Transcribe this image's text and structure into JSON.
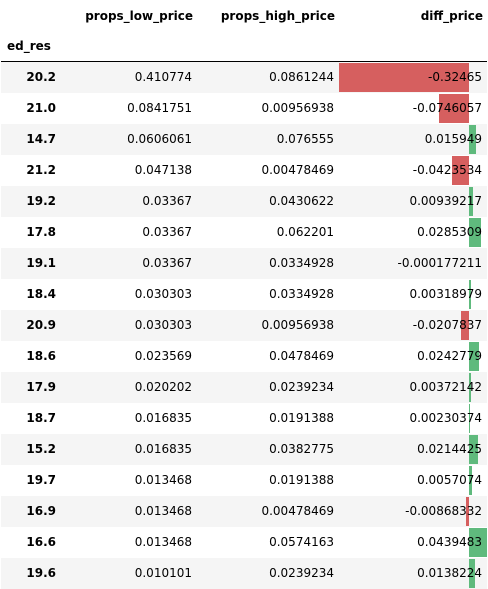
{
  "columns": [
    "props_low_price",
    "props_high_price",
    "diff_price"
  ],
  "index_name": "ed_res",
  "colors": {
    "negative": "#d65f5f",
    "positive": "#5fba7d"
  },
  "bar_scale": {
    "min": -0.32465,
    "max": 0.0439483
  },
  "rows": [
    {
      "idx": "20.2",
      "low": "0.410774",
      "high": "0.0861244",
      "diff": "-0.32465",
      "dv": -0.32465
    },
    {
      "idx": "21.0",
      "low": "0.0841751",
      "high": "0.00956938",
      "diff": "-0.0746057",
      "dv": -0.0746057
    },
    {
      "idx": "14.7",
      "low": "0.0606061",
      "high": "0.076555",
      "diff": "0.015949",
      "dv": 0.015949
    },
    {
      "idx": "21.2",
      "low": "0.047138",
      "high": "0.00478469",
      "diff": "-0.0423534",
      "dv": -0.0423534
    },
    {
      "idx": "19.2",
      "low": "0.03367",
      "high": "0.0430622",
      "diff": "0.00939217",
      "dv": 0.00939217
    },
    {
      "idx": "17.8",
      "low": "0.03367",
      "high": "0.062201",
      "diff": "0.0285309",
      "dv": 0.0285309
    },
    {
      "idx": "19.1",
      "low": "0.03367",
      "high": "0.0334928",
      "diff": "-0.000177211",
      "dv": -0.000177211
    },
    {
      "idx": "18.4",
      "low": "0.030303",
      "high": "0.0334928",
      "diff": "0.00318979",
      "dv": 0.00318979
    },
    {
      "idx": "20.9",
      "low": "0.030303",
      "high": "0.00956938",
      "diff": "-0.0207837",
      "dv": -0.0207837
    },
    {
      "idx": "18.6",
      "low": "0.023569",
      "high": "0.0478469",
      "diff": "0.0242779",
      "dv": 0.0242779
    },
    {
      "idx": "17.9",
      "low": "0.020202",
      "high": "0.0239234",
      "diff": "0.00372142",
      "dv": 0.00372142
    },
    {
      "idx": "18.7",
      "low": "0.016835",
      "high": "0.0191388",
      "diff": "0.00230374",
      "dv": 0.00230374
    },
    {
      "idx": "15.2",
      "low": "0.016835",
      "high": "0.0382775",
      "diff": "0.0214425",
      "dv": 0.0214425
    },
    {
      "idx": "19.7",
      "low": "0.013468",
      "high": "0.0191388",
      "diff": "0.0057074",
      "dv": 0.0057074
    },
    {
      "idx": "16.9",
      "low": "0.013468",
      "high": "0.00478469",
      "diff": "-0.00868332",
      "dv": -0.00868332
    },
    {
      "idx": "16.6",
      "low": "0.013468",
      "high": "0.0574163",
      "diff": "0.0439483",
      "dv": 0.0439483
    },
    {
      "idx": "19.6",
      "low": "0.010101",
      "high": "0.0239234",
      "diff": "0.0138224",
      "dv": 0.0138224
    }
  ]
}
